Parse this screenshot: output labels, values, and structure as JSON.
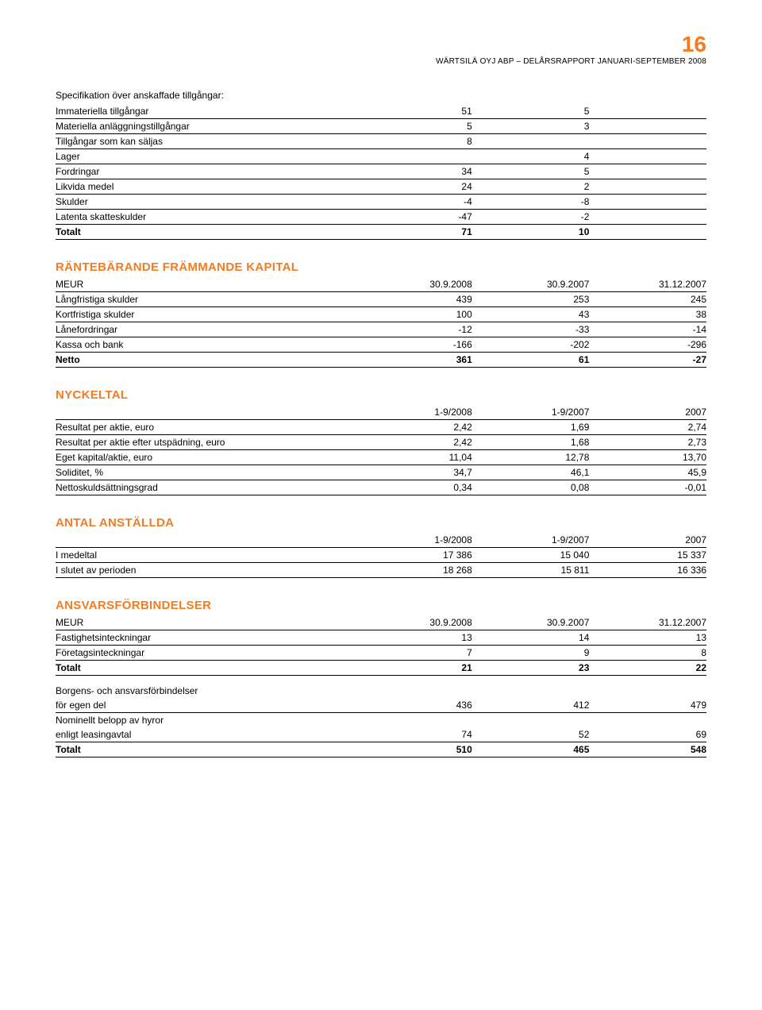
{
  "page_number": "16",
  "header": "WÄRTSILÄ OYJ ABP – DELÅRSRAPPORT JANUARI-SEPTEMBER 2008",
  "colors": {
    "accent": "#f47b20",
    "text": "#000000",
    "background": "#ffffff"
  },
  "spec_table": {
    "intro": "Specifikation över anskaffade tillgångar:",
    "rows": [
      {
        "label": "Immateriella tillgångar",
        "c1": "51",
        "c2": "5"
      },
      {
        "label": "Materiella anläggningstillgångar",
        "c1": "5",
        "c2": "3"
      },
      {
        "label": "Tillgångar som kan säljas",
        "c1": "8",
        "c2": ""
      },
      {
        "label": "Lager",
        "c1": "",
        "c2": "4"
      },
      {
        "label": "Fordringar",
        "c1": "34",
        "c2": "5"
      },
      {
        "label": "Likvida medel",
        "c1": "24",
        "c2": "2"
      },
      {
        "label": "Skulder",
        "c1": "-4",
        "c2": "-8"
      },
      {
        "label": "Latenta skatteskulder",
        "c1": "-47",
        "c2": "-2"
      }
    ],
    "total": {
      "label": "Totalt",
      "c1": "71",
      "c2": "10"
    }
  },
  "kapital": {
    "heading": "RÄNTEBÄRANDE FRÄMMANDE KAPITAL",
    "header": {
      "label": "MEUR",
      "c1": "30.9.2008",
      "c2": "30.9.2007",
      "c3": "31.12.2007"
    },
    "rows": [
      {
        "label": "Långfristiga skulder",
        "c1": "439",
        "c2": "253",
        "c3": "245"
      },
      {
        "label": "Kortfristiga skulder",
        "c1": "100",
        "c2": "43",
        "c3": "38"
      },
      {
        "label": "Lånefordringar",
        "c1": "-12",
        "c2": "-33",
        "c3": "-14"
      },
      {
        "label": "Kassa och bank",
        "c1": "-166",
        "c2": "-202",
        "c3": "-296"
      }
    ],
    "total": {
      "label": "Netto",
      "c1": "361",
      "c2": "61",
      "c3": "-27"
    }
  },
  "nyckeltal": {
    "heading": "NYCKELTAL",
    "header": {
      "label": "",
      "c1": "1-9/2008",
      "c2": "1-9/2007",
      "c3": "2007"
    },
    "rows": [
      {
        "label": "Resultat per aktie, euro",
        "c1": "2,42",
        "c2": "1,69",
        "c3": "2,74"
      },
      {
        "label": "Resultat per aktie efter utspädning, euro",
        "c1": "2,42",
        "c2": "1,68",
        "c3": "2,73"
      },
      {
        "label": "Eget kapital/aktie, euro",
        "c1": "11,04",
        "c2": "12,78",
        "c3": "13,70"
      },
      {
        "label": "Soliditet, %",
        "c1": "34,7",
        "c2": "46,1",
        "c3": "45,9"
      },
      {
        "label": "Nettoskuldsättningsgrad",
        "c1": "0,34",
        "c2": "0,08",
        "c3": "-0,01"
      }
    ]
  },
  "anstallda": {
    "heading": "ANTAL ANSTÄLLDA",
    "header": {
      "label": "",
      "c1": "1-9/2008",
      "c2": "1-9/2007",
      "c3": "2007"
    },
    "rows": [
      {
        "label": "I medeltal",
        "c1": "17 386",
        "c2": "15 040",
        "c3": "15 337"
      },
      {
        "label": "I slutet av perioden",
        "c1": "18 268",
        "c2": "15 811",
        "c3": "16 336"
      }
    ]
  },
  "ansvars": {
    "heading": "ANSVARSFÖRBINDELSER",
    "header": {
      "label": "MEUR",
      "c1": "30.9.2008",
      "c2": "30.9.2007",
      "c3": "31.12.2007"
    },
    "rows1": [
      {
        "label": "Fastighetsinteckningar",
        "c1": "13",
        "c2": "14",
        "c3": "13"
      },
      {
        "label": "Företagsinteckningar",
        "c1": "7",
        "c2": "9",
        "c3": "8"
      }
    ],
    "total1": {
      "label": "Totalt",
      "c1": "21",
      "c2": "23",
      "c3": "22"
    },
    "rows2": [
      {
        "label": "Borgens- och ansvarsförbindelser",
        "c1": "",
        "c2": "",
        "c3": ""
      },
      {
        "label": "för egen del",
        "c1": "436",
        "c2": "412",
        "c3": "479"
      },
      {
        "label": "Nominellt belopp av hyror",
        "c1": "",
        "c2": "",
        "c3": ""
      },
      {
        "label": "enligt leasingavtal",
        "c1": "74",
        "c2": "52",
        "c3": "69"
      }
    ],
    "total2": {
      "label": "Totalt",
      "c1": "510",
      "c2": "465",
      "c3": "548"
    }
  }
}
